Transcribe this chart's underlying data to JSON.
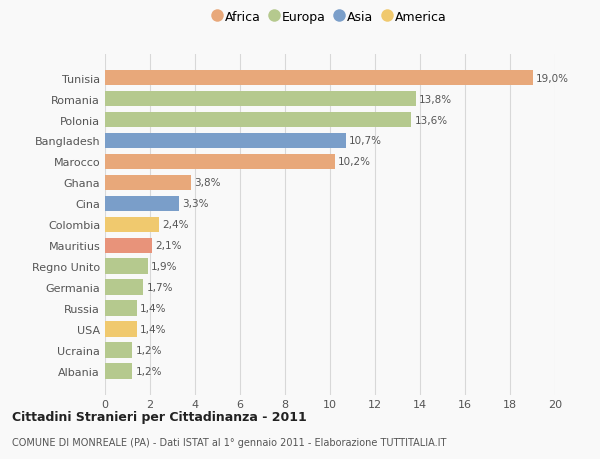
{
  "countries": [
    "Albania",
    "Ucraina",
    "USA",
    "Russia",
    "Germania",
    "Regno Unito",
    "Mauritius",
    "Colombia",
    "Cina",
    "Ghana",
    "Marocco",
    "Bangladesh",
    "Polonia",
    "Romania",
    "Tunisia"
  ],
  "values": [
    1.2,
    1.2,
    1.4,
    1.4,
    1.7,
    1.9,
    2.1,
    2.4,
    3.3,
    3.8,
    10.2,
    10.7,
    13.6,
    13.8,
    19.0
  ],
  "labels": [
    "1,2%",
    "1,2%",
    "1,4%",
    "1,4%",
    "1,7%",
    "1,9%",
    "2,1%",
    "2,4%",
    "3,3%",
    "3,8%",
    "10,2%",
    "10,7%",
    "13,6%",
    "13,8%",
    "19,0%"
  ],
  "colors": [
    "#b5c98e",
    "#b5c98e",
    "#f0c96e",
    "#b5c98e",
    "#b5c98e",
    "#b5c98e",
    "#e8937a",
    "#f0c96e",
    "#7a9ec9",
    "#e8a87a",
    "#e8a87a",
    "#7a9ec9",
    "#b5c98e",
    "#b5c98e",
    "#e8a87a"
  ],
  "continent_colors": {
    "Africa": "#e8a87a",
    "Europa": "#b5c98e",
    "Asia": "#7a9ec9",
    "America": "#f0c96e"
  },
  "title": "Cittadini Stranieri per Cittadinanza - 2011",
  "subtitle": "COMUNE DI MONREALE (PA) - Dati ISTAT al 1° gennaio 2011 - Elaborazione TUTTITALIA.IT",
  "xlim": [
    0,
    20
  ],
  "xticks": [
    0,
    2,
    4,
    6,
    8,
    10,
    12,
    14,
    16,
    18,
    20
  ],
  "background_color": "#f9f9f9",
  "bar_height": 0.75,
  "grid_color": "#d8d8d8"
}
